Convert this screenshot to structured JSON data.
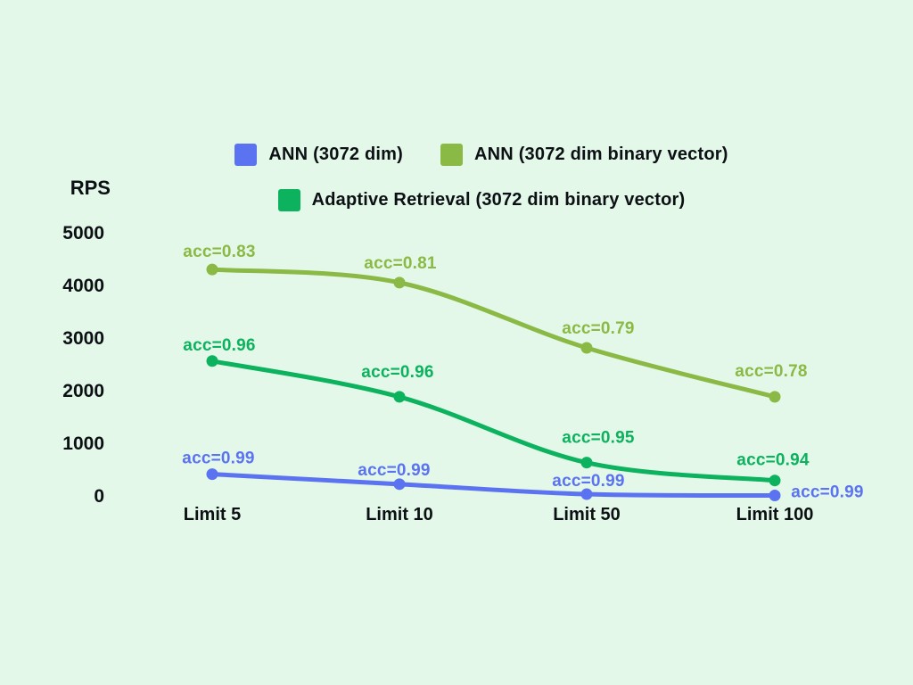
{
  "page": {
    "background": "#e4f8e9",
    "text_color": "#0c1014"
  },
  "chart_data": {
    "type": "line",
    "title": "",
    "xlabel": "",
    "ylabel": "RPS",
    "categories": [
      "Limit 5",
      "Limit 10",
      "Limit 50",
      "Limit 100"
    ],
    "yticks": [
      5000,
      4000,
      3000,
      2000,
      1000,
      0
    ],
    "ylim": [
      0,
      5000
    ],
    "grid": false,
    "legend_position": "top",
    "annotation_format": "acc={v}",
    "series": [
      {
        "name": "ANN (3072 dim)",
        "color": "#5b73f0",
        "values": [
          430,
          240,
          50,
          25
        ],
        "acc": [
          0.99,
          0.99,
          0.99,
          0.99
        ],
        "label_offsets": [
          [
            7,
            -19
          ],
          [
            -6,
            -17
          ],
          [
            2,
            -16
          ],
          [
            59,
            -5
          ]
        ]
      },
      {
        "name": "ANN (3072 dim binary vector)",
        "color": "#8aba45",
        "values": [
          4320,
          4070,
          2830,
          1900
        ],
        "acc": [
          0.83,
          0.81,
          0.79,
          0.78
        ],
        "label_offsets": [
          [
            8,
            -21
          ],
          [
            1,
            -23
          ],
          [
            13,
            -23
          ],
          [
            -4,
            -30
          ]
        ]
      },
      {
        "name": "Adaptive Retrieval (3072 dim binary vector)",
        "color": "#0cb25e",
        "values": [
          2580,
          1900,
          650,
          310
        ],
        "acc": [
          0.96,
          0.96,
          0.95,
          0.94
        ],
        "label_offsets": [
          [
            8,
            -19
          ],
          [
            -2,
            -29
          ],
          [
            13,
            -29
          ],
          [
            -2,
            -24
          ]
        ]
      }
    ]
  }
}
